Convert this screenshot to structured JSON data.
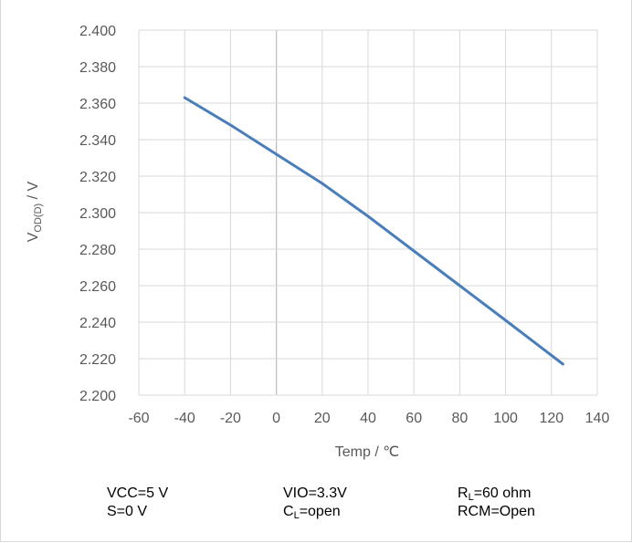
{
  "chart_data": {
    "type": "line",
    "xlabel": "Temp / ℃",
    "ylabel": {
      "main": "V",
      "sub": "OD(D)",
      "unit": " / V"
    },
    "xlim": [
      -60,
      140
    ],
    "ylim": [
      2.2,
      2.4
    ],
    "x_ticks": [
      "-60",
      "-40",
      "-20",
      "0",
      "20",
      "40",
      "60",
      "80",
      "100",
      "120",
      "140"
    ],
    "y_ticks": [
      "2.200",
      "2.220",
      "2.240",
      "2.260",
      "2.280",
      "2.300",
      "2.320",
      "2.340",
      "2.360",
      "2.380",
      "2.400"
    ],
    "grid": true,
    "series": [
      {
        "color": "#4a7ebb",
        "x": [
          -40,
          -20,
          0,
          20,
          40,
          60,
          80,
          100,
          125
        ],
        "y": [
          2.363,
          2.348,
          2.332,
          2.316,
          2.298,
          2.279,
          2.26,
          2.241,
          2.217
        ]
      }
    ]
  },
  "conditions": {
    "vcc": "VCC=5 V",
    "s": "S=0 V",
    "vio": "VIO=3.3V",
    "cl": {
      "main": "C",
      "sub": "L",
      "rest": "=open"
    },
    "rl": {
      "main": "R",
      "sub": "L",
      "rest": "=60 ohm"
    },
    "rcm": "RCM=Open"
  },
  "colors": {
    "grid": "#d9d9d9",
    "zero_line": "#bfbfbf",
    "line": "#4a7ebb"
  }
}
